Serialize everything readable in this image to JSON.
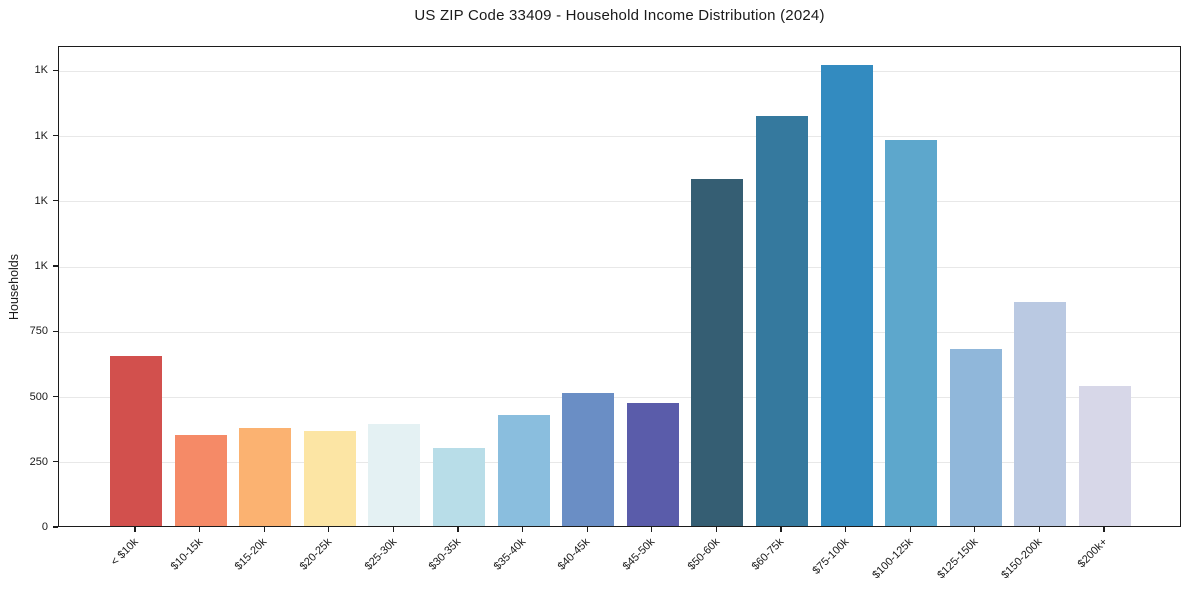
{
  "chart_data": {
    "type": "bar",
    "title": "US ZIP Code 33409 - Household Income Distribution (2024)",
    "xlabel": "",
    "ylabel": "Households",
    "ylim": [
      0,
      1843
    ],
    "grid": "horizontal-light",
    "legend": "none",
    "categories": [
      "< $10k",
      "$10-15k",
      "$15-20k",
      "$20-25k",
      "$25-30k",
      "$30-35k",
      "$35-40k",
      "$40-45k",
      "$45-50k",
      "$50-60k",
      "$60-75k",
      "$75-100k",
      "$100-125k",
      "$125-150k",
      "$150-200k",
      "$200k+"
    ],
    "values": [
      650,
      350,
      375,
      365,
      390,
      300,
      425,
      510,
      470,
      1330,
      1570,
      1765,
      1480,
      680,
      860,
      535
    ],
    "bar_colors": [
      "#d2504d",
      "#f58a67",
      "#fbb271",
      "#fce5a4",
      "#e4f1f3",
      "#b8dde8",
      "#8abede",
      "#6a8ec5",
      "#5a5caa",
      "#355e73",
      "#35799e",
      "#338bc0",
      "#5da7cc",
      "#90b7da",
      "#bac9e2",
      "#d7d7e8"
    ],
    "yticks": [
      {
        "value": 0,
        "label": "0"
      },
      {
        "value": 250,
        "label": "250"
      },
      {
        "value": 500,
        "label": "500"
      },
      {
        "value": 750,
        "label": "750"
      },
      {
        "value": 1000,
        "label": "1K"
      },
      {
        "value": 1250,
        "label": "1K"
      },
      {
        "value": 1500,
        "label": "1K"
      },
      {
        "value": 1750,
        "label": "1K"
      }
    ],
    "colors": {
      "spine": "#1c1c1c",
      "grid": "#e8e8e8",
      "text": "#1a1a1a",
      "background": "#ffffff"
    }
  }
}
